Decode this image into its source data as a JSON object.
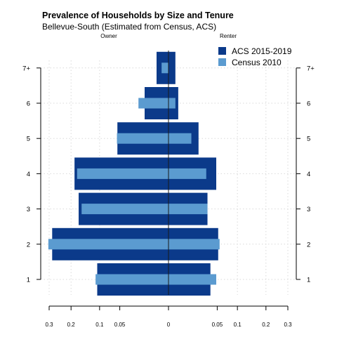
{
  "chart_data": {
    "type": "bar",
    "orientation": "horizontal",
    "layout": "population-pyramid",
    "title": "Prevalence of Households by Size and Tenure",
    "subtitle": "Bellevue-South (Estimated from Census, ACS)",
    "left_label": "Owner",
    "right_label": "Renter",
    "categories": [
      "1",
      "2",
      "3",
      "4",
      "5",
      "6",
      "7+"
    ],
    "x_ticks": [
      0.3,
      0.2,
      0.1,
      0.05,
      0,
      0.05,
      0.1,
      0.2,
      0.3
    ],
    "xlim": [
      -0.3,
      0.3
    ],
    "x_scale": "square-root",
    "grid": true,
    "legend_position": "top-right",
    "series": [
      {
        "name": "ACS 2015-2019",
        "color": "#0b3a8a",
        "owner": [
          0.107,
          0.285,
          0.17,
          0.186,
          0.055,
          0.012,
          0.003
        ],
        "renter": [
          0.037,
          0.052,
          0.032,
          0.048,
          0.019,
          0.002,
          0.001
        ]
      },
      {
        "name": "Census 2010",
        "color": "#5b9bd0",
        "owner": [
          0.112,
          0.304,
          0.159,
          0.176,
          0.056,
          0.019,
          0.001
        ],
        "renter": [
          0.048,
          0.055,
          0.032,
          0.03,
          0.011,
          0.001,
          0
        ]
      }
    ]
  }
}
